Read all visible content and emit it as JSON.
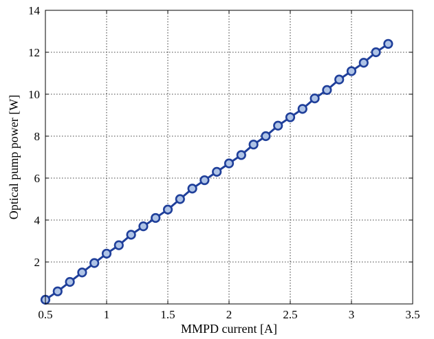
{
  "chart_data": {
    "type": "line",
    "title": "",
    "xlabel": "MMPD current [A]",
    "ylabel": "Optical pump power [W]",
    "xlim": [
      0.5,
      3.5
    ],
    "ylim": [
      0,
      14
    ],
    "xticks": [
      0.5,
      1,
      1.5,
      2,
      2.5,
      3,
      3.5
    ],
    "xtick_labels": [
      "0.5",
      "1",
      "1.5",
      "2",
      "2.5",
      "3",
      "3.5"
    ],
    "yticks": [
      2,
      4,
      6,
      8,
      10,
      12,
      14
    ],
    "ytick_labels": [
      "2",
      "4",
      "6",
      "8",
      "10",
      "12",
      "14"
    ],
    "grid": true,
    "legend": "none",
    "series": [
      {
        "color": "#1f3f9a",
        "marker_fill": "#aec3e6",
        "x": [
          0.5,
          0.6,
          0.7,
          0.8,
          0.9,
          1.0,
          1.1,
          1.2,
          1.3,
          1.4,
          1.5,
          1.6,
          1.7,
          1.8,
          1.9,
          2.0,
          2.1,
          2.2,
          2.3,
          2.4,
          2.5,
          2.6,
          2.7,
          2.8,
          2.9,
          3.0,
          3.1,
          3.2,
          3.3
        ],
        "y": [
          0.2,
          0.6,
          1.05,
          1.5,
          1.95,
          2.4,
          2.8,
          3.3,
          3.7,
          4.1,
          4.5,
          5.0,
          5.5,
          5.9,
          6.3,
          6.7,
          7.1,
          7.6,
          8.0,
          8.5,
          8.9,
          9.3,
          9.8,
          10.2,
          10.7,
          11.1,
          11.5,
          12.0,
          12.4
        ]
      }
    ]
  }
}
